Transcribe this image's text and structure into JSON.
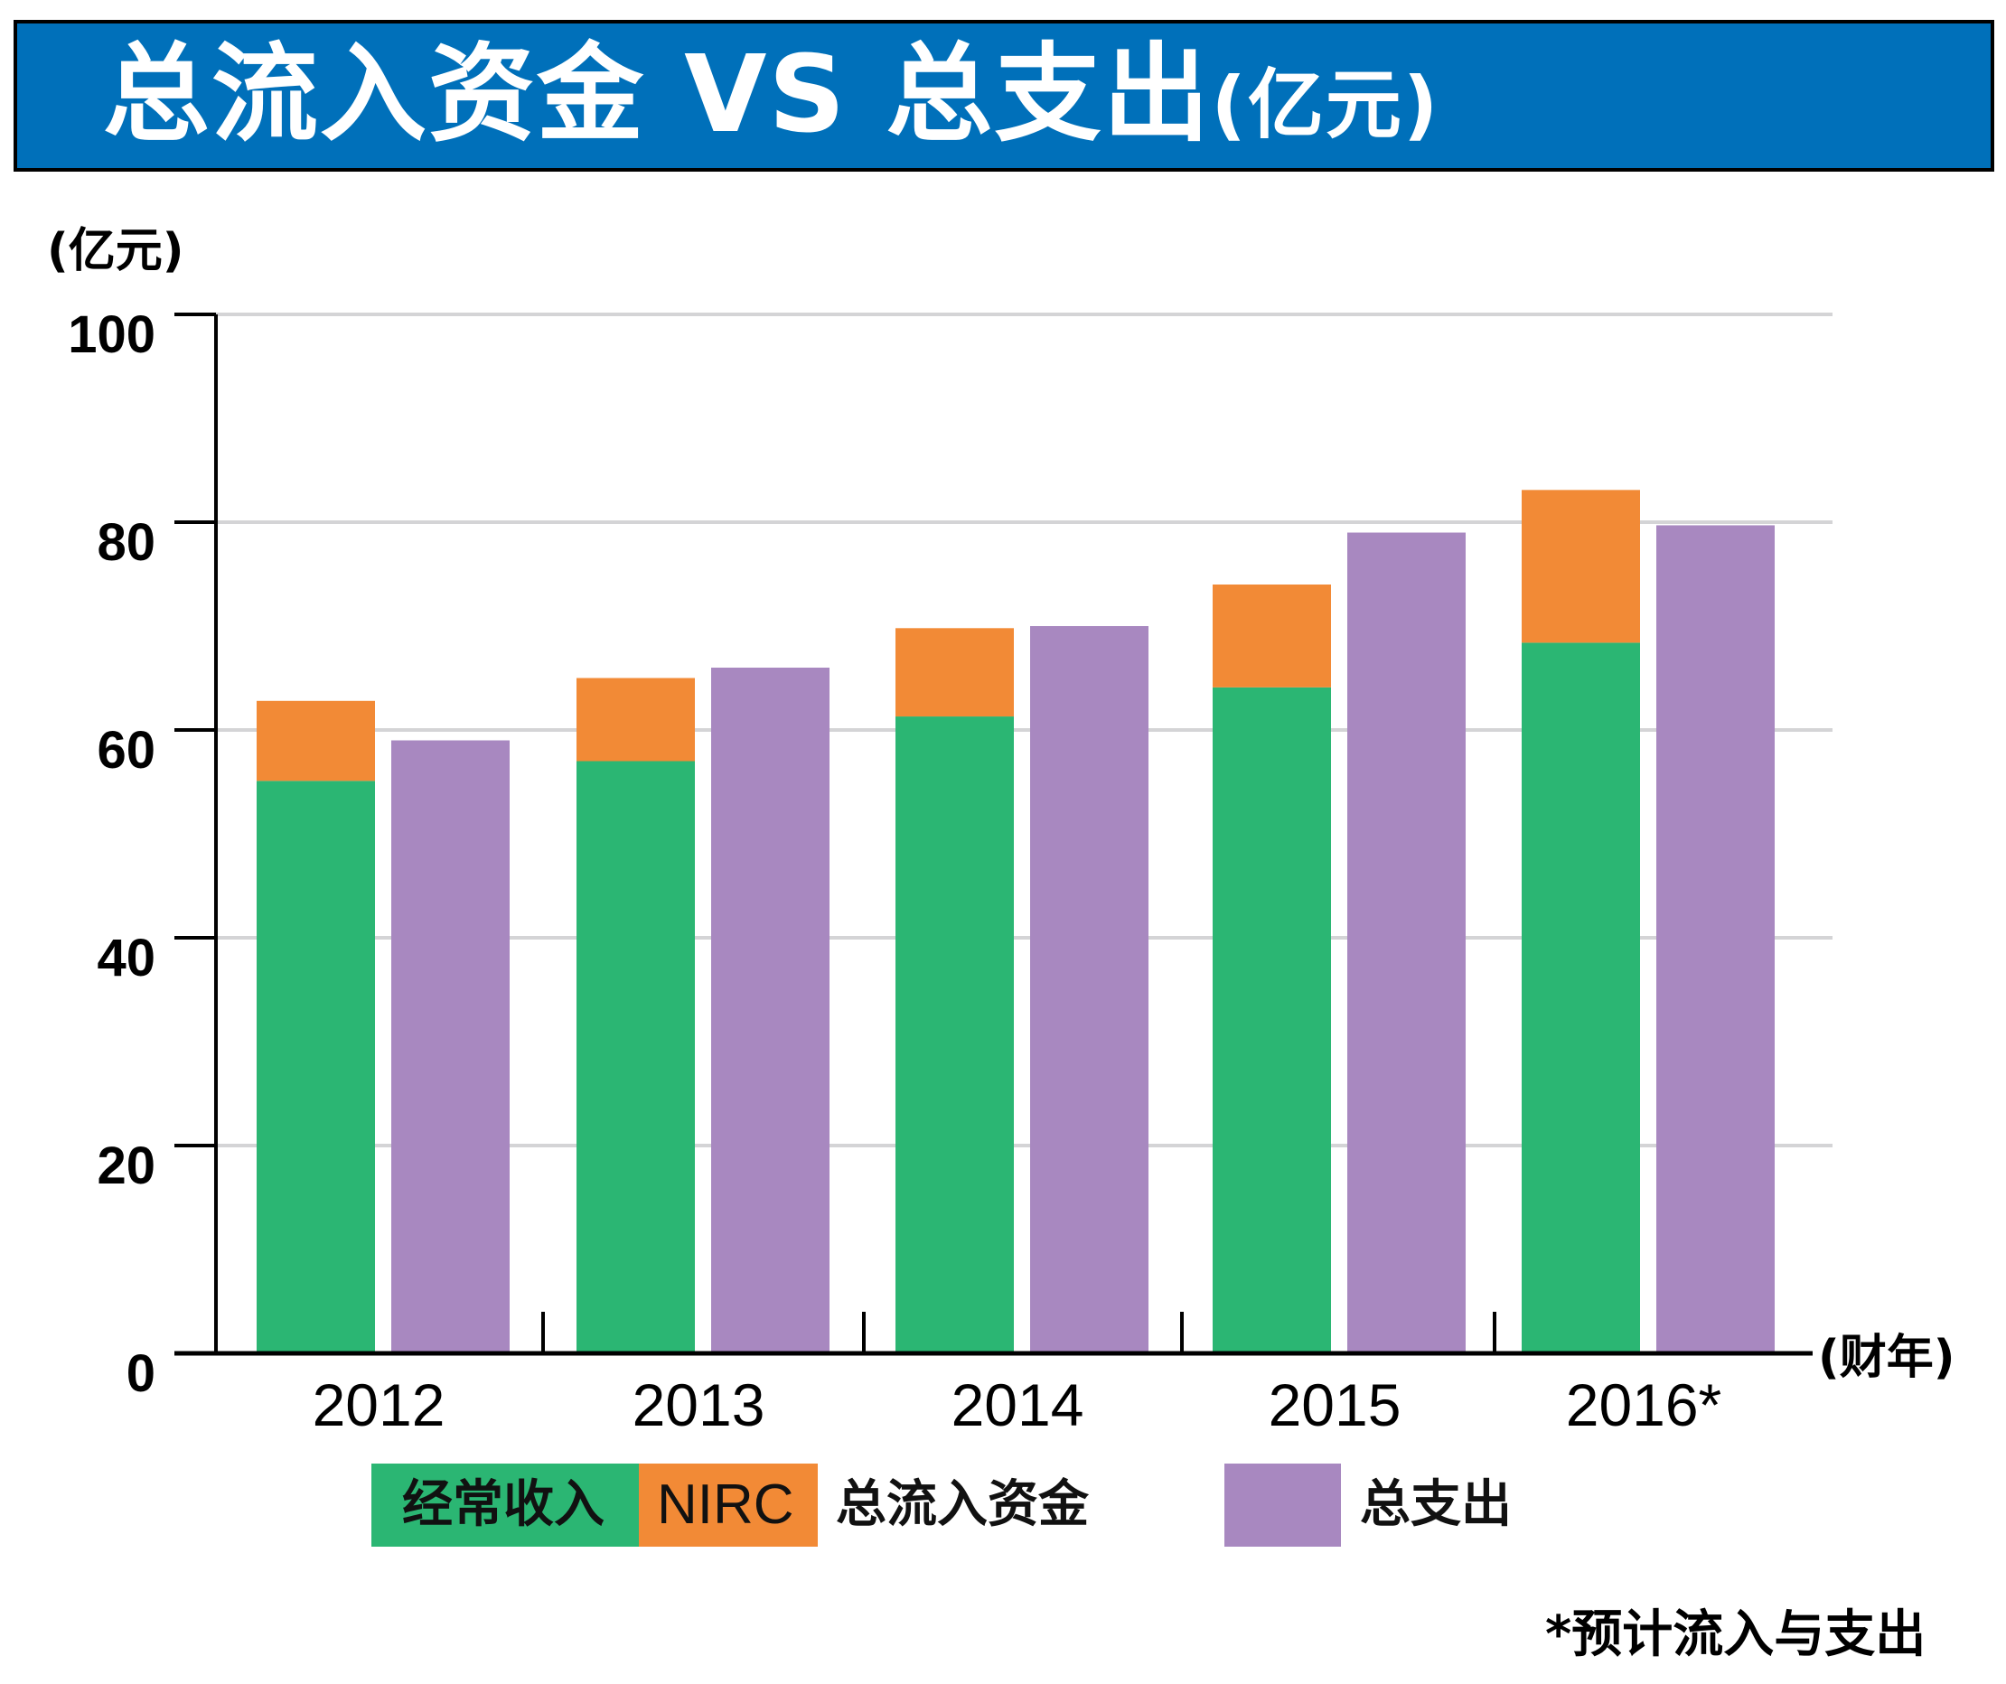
{
  "banner": {
    "title": "总流入资金 VS 总支出",
    "unit": "(亿元)",
    "background_color": "#0070BA"
  },
  "chart_data": {
    "type": "bar",
    "title": "总流入资金 VS 总支出(亿元)",
    "xlabel": "(财年)",
    "ylabel": "(亿元)",
    "categories": [
      "2012",
      "2013",
      "2014",
      "2015",
      "2016*"
    ],
    "ylim": [
      0,
      100
    ],
    "yticks": [
      0,
      20,
      40,
      60,
      80,
      100
    ],
    "grid": true,
    "stacked_groups": [
      {
        "group": "总流入资金",
        "series": [
          {
            "name": "经常收入",
            "color": "#2BB673",
            "values": [
              55.1,
              57.0,
              61.3,
              64.1,
              68.4
            ]
          },
          {
            "name": "NIRC",
            "color": "#F28A36",
            "values": [
              7.7,
              8.0,
              8.5,
              9.9,
              14.7
            ]
          }
        ],
        "totals": [
          62.8,
          65.0,
          69.8,
          74.0,
          83.1
        ]
      },
      {
        "group": "总支出",
        "series": [
          {
            "name": "总支出",
            "color": "#A888C0",
            "values": [
              59.0,
              66.0,
              70.0,
              79.0,
              79.7
            ]
          }
        ]
      }
    ],
    "legend": {
      "placement": "bottom",
      "items": [
        {
          "label": "经常收入",
          "color": "#2BB673"
        },
        {
          "label": "NIRC",
          "color": "#F28A36"
        },
        {
          "label": "总流入资金",
          "color": null
        },
        {
          "label": "总支出",
          "color": "#A888C0"
        }
      ]
    },
    "footnote": "*预计流入与支出"
  }
}
